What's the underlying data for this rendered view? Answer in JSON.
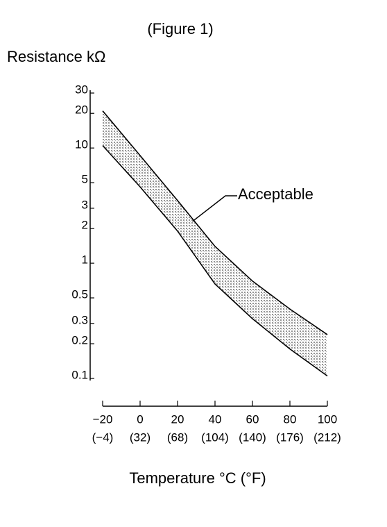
{
  "chart_data": {
    "type": "line",
    "title": "(Figure 1)",
    "y_label": "Resistance kΩ",
    "x_label": "Temperature °C (°F)",
    "x": [
      -20,
      0,
      20,
      40,
      60,
      80,
      100
    ],
    "series": [
      {
        "color": "#000000",
        "values": [
          21,
          8.6,
          3.5,
          1.4,
          0.7,
          0.4,
          0.24
        ]
      },
      {
        "color": "#000000",
        "values": [
          10.5,
          4.6,
          1.9,
          0.66,
          0.33,
          0.18,
          0.105
        ]
      }
    ],
    "band_color": "#9a9a9a",
    "annotation": "Acceptable",
    "log_y": true,
    "xlim": [
      -20,
      100
    ],
    "ylim": [
      0.1,
      30
    ],
    "xticks": [
      {
        "value": -20,
        "label": "−20"
      },
      0,
      20,
      40,
      60,
      80,
      100
    ],
    "xtick_sublabels": [
      "(−4)",
      "(32)",
      "(68)",
      "(104)",
      "(140)",
      "(176)",
      "(212)"
    ],
    "yticks": [
      0.1,
      0.2,
      0.3,
      0.5,
      1,
      2,
      3,
      5,
      10,
      20,
      30
    ]
  }
}
